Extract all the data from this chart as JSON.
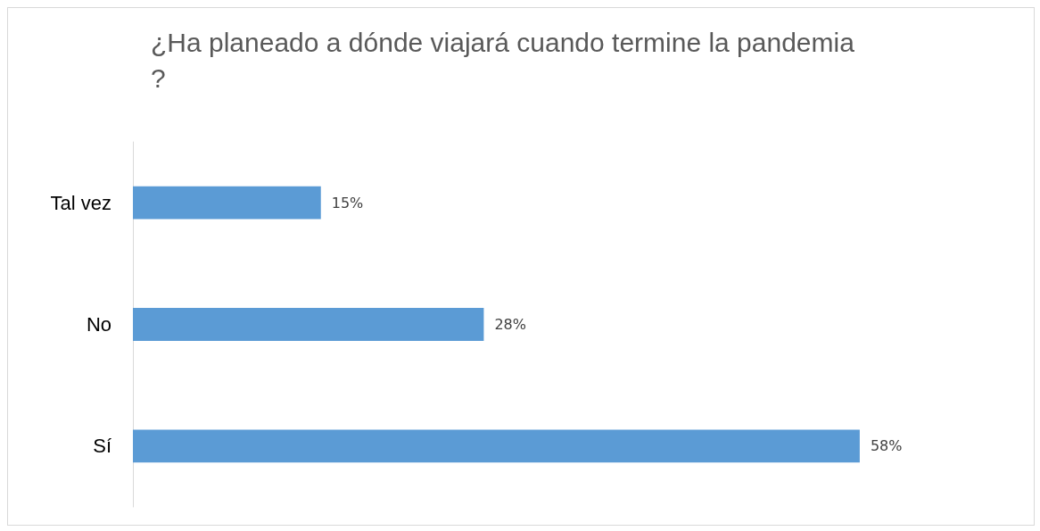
{
  "chart_data": {
    "type": "bar",
    "orientation": "horizontal",
    "title": "¿Ha planeado a dónde viajará cuando termine la pandemia?",
    "categories": [
      "Tal vez",
      "No",
      "Sí"
    ],
    "values": [
      15,
      28,
      58
    ],
    "value_labels": [
      "15%",
      "28%",
      "58%"
    ],
    "color": "#5b9bd5",
    "grid": false
  }
}
